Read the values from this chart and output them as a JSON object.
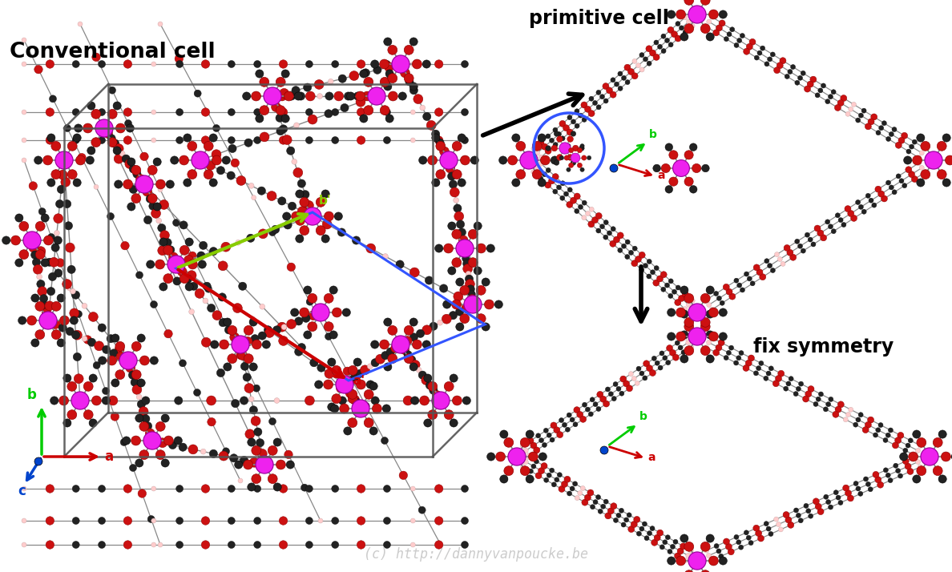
{
  "figsize": [
    11.88,
    7.14
  ],
  "dpi": 100,
  "bg": "#ffffff",
  "watermark": "(c) http://dannyvanpoucke.be",
  "watermark_color": "#cccccc",
  "label_conv": "Conventional cell",
  "label_prim": "primitive cell",
  "label_fix": "fix symmetry",
  "al_color": "#ee22ee",
  "al_edge": "#990099",
  "c_color": "#222222",
  "c_dark": "#444444",
  "o_color": "#cc1111",
  "o_edge": "#880000",
  "h_color": "#ffcccc",
  "h_edge": "#ccaaaa",
  "bond_color": "#888888",
  "cell_box_color": "#333333",
  "green_arrow": "#88cc00",
  "red_arrow": "#cc0000",
  "blue_box": "#3355ff",
  "prim_arrow_color": "#000000",
  "fix_arrow_color": "#000000",
  "axis_green": "#00cc00",
  "axis_red": "#cc0000",
  "axis_blue": "#0044cc",
  "inset_circle_color": "#3355ff"
}
